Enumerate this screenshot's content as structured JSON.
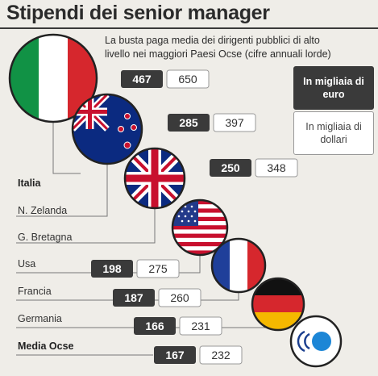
{
  "title": "Stipendi dei senior manager",
  "subtitle": "La busta paga media dei dirigenti pubblici di alto livello nei maggiori Paesi Ocse (cifre annuali lorde)",
  "legend": {
    "eur": "In migliaia di euro",
    "usd": "In migliaia di dollari"
  },
  "colors": {
    "eur_box": "#3a3a3a",
    "usd_box": "#ffffff",
    "background": "#efede8"
  },
  "chart_data": {
    "type": "table",
    "title": "Stipendi dei senior manager",
    "series": [
      {
        "name": "In migliaia di euro",
        "values": [
          467,
          285,
          250,
          198,
          187,
          166,
          167
        ]
      },
      {
        "name": "In migliaia di dollari",
        "values": [
          650,
          397,
          348,
          275,
          260,
          231,
          232
        ]
      }
    ],
    "rows": [
      {
        "country": "Italia",
        "flag": "italy-flag-icon",
        "eur": 467,
        "usd": 650,
        "bold": true
      },
      {
        "country": "N. Zelanda",
        "flag": "new-zealand-flag-icon",
        "eur": 285,
        "usd": 397,
        "bold": false
      },
      {
        "country": "G. Bretagna",
        "flag": "uk-flag-icon",
        "eur": 250,
        "usd": 348,
        "bold": false
      },
      {
        "country": "Usa",
        "flag": "usa-flag-icon",
        "eur": 198,
        "usd": 275,
        "bold": false
      },
      {
        "country": "Francia",
        "flag": "france-flag-icon",
        "eur": 187,
        "usd": 260,
        "bold": false
      },
      {
        "country": "Germania",
        "flag": "germany-flag-icon",
        "eur": 166,
        "usd": 231,
        "bold": false
      },
      {
        "country": "Media Ocse",
        "flag": "oecd-logo-icon",
        "eur": 167,
        "usd": 232,
        "bold": true
      }
    ]
  }
}
